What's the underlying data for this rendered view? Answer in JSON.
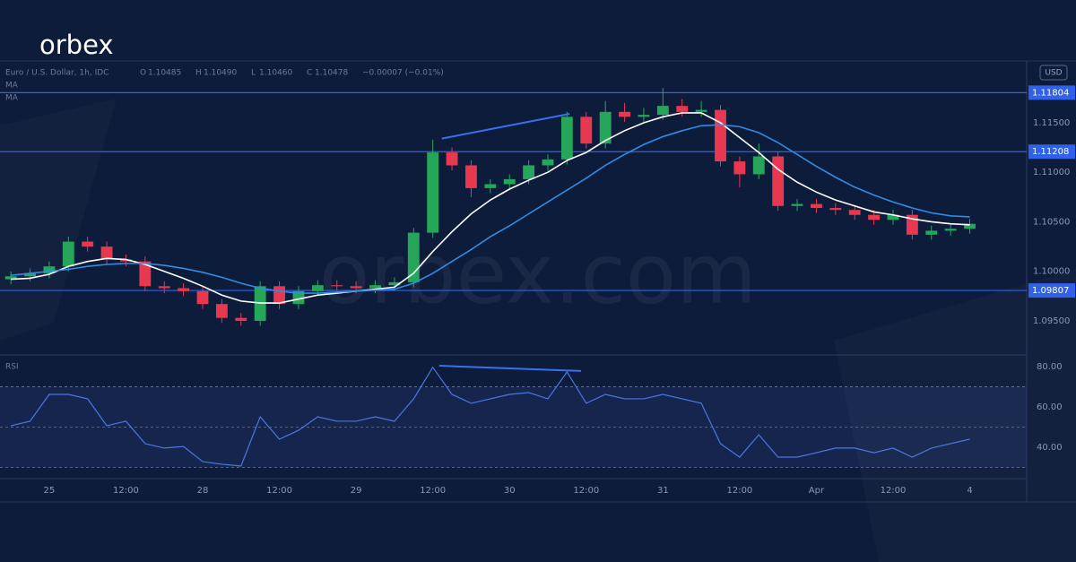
{
  "logo": "orbex",
  "watermark": "orbex.com",
  "chart_data": [
    {
      "type": "candlestick",
      "title": "Euro / U.S. Dollar, 1h, IDC",
      "ohlc": [
        {
          "label": "O",
          "value": "1.10485"
        },
        {
          "label": "H",
          "value": "1.10490"
        },
        {
          "label": "L",
          "value": "1.10460"
        },
        {
          "label": "C",
          "value": "1.10478"
        }
      ],
      "change": "−0.00007 (−0.01%)",
      "currency": "USD",
      "x": [
        -6,
        -3,
        0,
        3,
        6,
        9,
        12,
        15,
        18,
        21,
        24,
        27,
        30,
        33,
        36,
        39,
        42,
        45,
        48,
        51,
        54,
        57,
        60,
        63,
        66,
        69,
        72,
        75,
        78,
        81,
        84,
        87,
        90,
        93,
        96,
        99,
        102,
        105,
        108,
        111,
        114,
        117,
        120,
        123,
        126,
        129,
        132,
        135,
        138,
        141,
        144
      ],
      "xlim": [
        -7.7,
        152.9
      ],
      "xticks": [
        {
          "value": 0,
          "label": "25"
        },
        {
          "value": 12,
          "label": "12:00"
        },
        {
          "value": 24,
          "label": "28"
        },
        {
          "value": 36,
          "label": "12:00"
        },
        {
          "value": 48,
          "label": "29"
        },
        {
          "value": 60,
          "label": "12:00"
        },
        {
          "value": 72,
          "label": "30"
        },
        {
          "value": 84,
          "label": "12:00"
        },
        {
          "value": 96,
          "label": "31"
        },
        {
          "value": 108,
          "label": "12:00"
        },
        {
          "value": 120,
          "label": "Apr"
        },
        {
          "value": 132,
          "label": "12:00"
        },
        {
          "value": 144,
          "label": "4"
        }
      ],
      "ylim": [
        1.09165,
        1.12124
      ],
      "yticks": [
        {
          "value": 1.115,
          "label": "1.11500"
        },
        {
          "value": 1.11,
          "label": "1.11000"
        },
        {
          "value": 1.105,
          "label": "1.10500"
        },
        {
          "value": 1.1,
          "label": "1.10000"
        },
        {
          "value": 1.095,
          "label": "1.09500"
        }
      ],
      "candles": {
        "up_color": "#26a65b",
        "down_color": "#e8384f",
        "open": [
          1.0992,
          1.0995,
          1.0998,
          1.1005,
          1.103,
          1.1025,
          1.1012,
          1.101,
          1.0985,
          1.0983,
          1.098,
          1.0967,
          1.0953,
          1.095,
          1.0985,
          1.0967,
          1.098,
          1.0986,
          1.0985,
          1.0983,
          1.0986,
          1.0989,
          1.1039,
          1.112,
          1.1107,
          1.1084,
          1.1088,
          1.1093,
          1.1107,
          1.1113,
          1.1156,
          1.1129,
          1.1161,
          1.1156,
          1.1158,
          1.1167,
          1.1161,
          1.1163,
          1.1111,
          1.1098,
          1.1116,
          1.1066,
          1.1068,
          1.1064,
          1.1062,
          1.1057,
          1.1052,
          1.1057,
          1.1037,
          1.1041,
          1.1043
        ],
        "high": [
          1.1,
          1.1003,
          1.101,
          1.1035,
          1.1035,
          1.103,
          1.1017,
          1.1015,
          1.099,
          1.0988,
          1.0985,
          1.0972,
          1.0958,
          1.099,
          1.099,
          1.0985,
          1.0991,
          1.0991,
          1.099,
          1.0991,
          1.0994,
          1.1044,
          1.1133,
          1.1125,
          1.1112,
          1.1093,
          1.1098,
          1.1112,
          1.1118,
          1.1161,
          1.1161,
          1.1172,
          1.117,
          1.1165,
          1.1185,
          1.1174,
          1.1172,
          1.1168,
          1.1116,
          1.1129,
          1.1121,
          1.1073,
          1.1073,
          1.1069,
          1.1067,
          1.1062,
          1.1062,
          1.1062,
          1.1046,
          1.1048,
          1.1053
        ],
        "low": [
          1.0987,
          1.099,
          1.0993,
          1.1,
          1.102,
          1.1007,
          1.1005,
          1.098,
          1.0978,
          1.0975,
          1.0962,
          1.0948,
          1.0945,
          1.0945,
          1.0962,
          1.0962,
          1.0975,
          1.098,
          1.0978,
          1.0978,
          1.0981,
          1.0984,
          1.1034,
          1.1102,
          1.1075,
          1.1079,
          1.1083,
          1.1088,
          1.1102,
          1.1108,
          1.1124,
          1.1124,
          1.1151,
          1.1151,
          1.1153,
          1.1156,
          1.1156,
          1.1106,
          1.1085,
          1.1093,
          1.1061,
          1.1061,
          1.1059,
          1.1057,
          1.1052,
          1.1047,
          1.1047,
          1.1032,
          1.1032,
          1.1036,
          1.1038
        ],
        "close": [
          1.0995,
          1.0998,
          1.1005,
          1.103,
          1.1025,
          1.1012,
          1.101,
          1.0985,
          1.0983,
          1.098,
          1.0967,
          1.0953,
          1.095,
          1.0985,
          1.0967,
          1.098,
          1.0986,
          1.0985,
          1.0983,
          1.0986,
          1.0989,
          1.1039,
          1.112,
          1.1107,
          1.1084,
          1.1088,
          1.1093,
          1.1107,
          1.1113,
          1.1156,
          1.1129,
          1.1161,
          1.1156,
          1.1158,
          1.1167,
          1.1161,
          1.1163,
          1.1111,
          1.1098,
          1.1116,
          1.1066,
          1.1068,
          1.1064,
          1.1062,
          1.1057,
          1.1052,
          1.1057,
          1.1037,
          1.1041,
          1.1043,
          1.1048
        ]
      },
      "series": [
        {
          "name": "MA",
          "color": "#ffffff",
          "values": [
            1.0992,
            1.0993,
            1.0997,
            1.1005,
            1.101,
            1.1013,
            1.1012,
            1.1007,
            1.1,
            1.0993,
            1.0985,
            1.0976,
            1.097,
            1.0968,
            1.0968,
            1.0972,
            1.0976,
            1.0978,
            1.098,
            1.0982,
            1.0984,
            1.0998,
            1.102,
            1.104,
            1.1058,
            1.1072,
            1.1083,
            1.1092,
            1.11,
            1.1112,
            1.112,
            1.1132,
            1.1142,
            1.115,
            1.1156,
            1.116,
            1.116,
            1.115,
            1.1135,
            1.112,
            1.1103,
            1.109,
            1.108,
            1.1072,
            1.1066,
            1.106,
            1.1057,
            1.1053,
            1.105,
            1.1048,
            1.1047
          ]
        },
        {
          "name": "MA",
          "color": "#2f8ce6",
          "values": [
            1.0996,
            1.0998,
            1.1,
            1.1002,
            1.1005,
            1.1007,
            1.1008,
            1.1008,
            1.1006,
            1.1003,
            1.0999,
            1.0994,
            1.0988,
            1.0983,
            1.098,
            1.0978,
            1.0978,
            1.0979,
            1.098,
            1.0981,
            1.0982,
            1.0988,
            1.0998,
            1.101,
            1.1022,
            1.1035,
            1.1046,
            1.1058,
            1.107,
            1.1082,
            1.1094,
            1.1107,
            1.1118,
            1.1128,
            1.1136,
            1.1142,
            1.1147,
            1.1148,
            1.1146,
            1.114,
            1.113,
            1.1118,
            1.1106,
            1.1095,
            1.1085,
            1.1077,
            1.107,
            1.1064,
            1.1059,
            1.1056,
            1.1055
          ]
        }
      ],
      "levels": [
        {
          "value": 1.11804,
          "label": "1.11804"
        },
        {
          "value": 1.11208,
          "label": "1.11208"
        },
        {
          "value": 1.09807,
          "label": "1.09807"
        }
      ],
      "level_color": "#2f62e8",
      "annotations": [
        {
          "x": [
            61.4,
            81.4
          ],
          "y": [
            1.1134,
            1.1159
          ],
          "color": "#3a6ff0"
        }
      ]
    },
    {
      "type": "line",
      "title": "RSI",
      "color": "#4a78e0",
      "values": [
        50.7,
        52.9,
        66.2,
        66.2,
        64,
        50.7,
        52.9,
        41.8,
        39.6,
        40.4,
        32.9,
        31.6,
        30.7,
        55.1,
        44,
        48.4,
        55.1,
        52.9,
        52.9,
        55.1,
        52.9,
        64,
        79.6,
        66.2,
        61.8,
        64,
        66.2,
        67.1,
        64,
        77.3,
        61.8,
        66.2,
        64,
        64,
        66.2,
        64,
        61.8,
        41.8,
        35.1,
        46.2,
        35.1,
        35.1,
        37.3,
        39.6,
        39.6,
        37.3,
        39.6,
        35.1,
        39.6,
        41.8,
        44
      ],
      "ylim": [
        24.9,
        85.3
      ],
      "yticks": [
        {
          "value": 80,
          "label": "80.00"
        },
        {
          "value": 60,
          "label": "60.00"
        },
        {
          "value": 40,
          "label": "40.00"
        }
      ],
      "levels": [
        70,
        50,
        30
      ],
      "band": [
        30,
        70
      ],
      "annotations": [
        {
          "x": [
            61,
            83.2
          ],
          "y": [
            80.4,
            77.8
          ],
          "color": "#3a6ff0"
        }
      ]
    }
  ]
}
